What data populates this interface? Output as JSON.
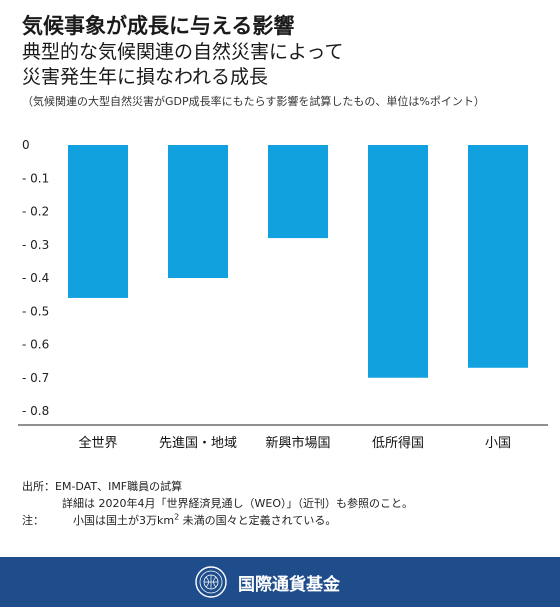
{
  "header": {
    "title": "気候事象が成長に与える影響",
    "subtitle_line1": "典型的な気候関連の自然災害によって",
    "subtitle_line2": "災害発生年に損なわれる成長",
    "note": "（気候関連の大型自然災害がGDP成長率にもたらす影響を試算したもの、単位は%ポイント）"
  },
  "chart_data": {
    "type": "bar",
    "categories": [
      "全世界",
      "先進国・地域",
      "新興市場国",
      "低所得国",
      "小国"
    ],
    "values": [
      -0.46,
      -0.4,
      -0.28,
      -0.7,
      -0.67
    ],
    "ylim": [
      -0.8,
      0
    ],
    "yticks": [
      0,
      -0.1,
      -0.2,
      -0.3,
      -0.4,
      -0.5,
      -0.6,
      -0.7,
      -0.8
    ],
    "ytick_labels": [
      "0",
      "- 0.1",
      "- 0.2",
      "- 0.3",
      "- 0.4",
      "- 0.5",
      "- 0.6",
      "- 0.7",
      "- 0.8"
    ],
    "grid": false,
    "bar_color": "#12a1df"
  },
  "footer": {
    "source_label": "出所：EM-DAT、IMF職員の試算",
    "source_detail": "詳細は 2020年4月「世界経済見通し（WEO）」（近刊）も参照のこと。",
    "note_label": "注：",
    "note_text_pre": "小国は国土が3万km",
    "note_sup": "2",
    "note_text_post": " 未満の国々と定義されている。",
    "org_name": "国際通貨基金",
    "bar_color": "#1f4d8c"
  }
}
